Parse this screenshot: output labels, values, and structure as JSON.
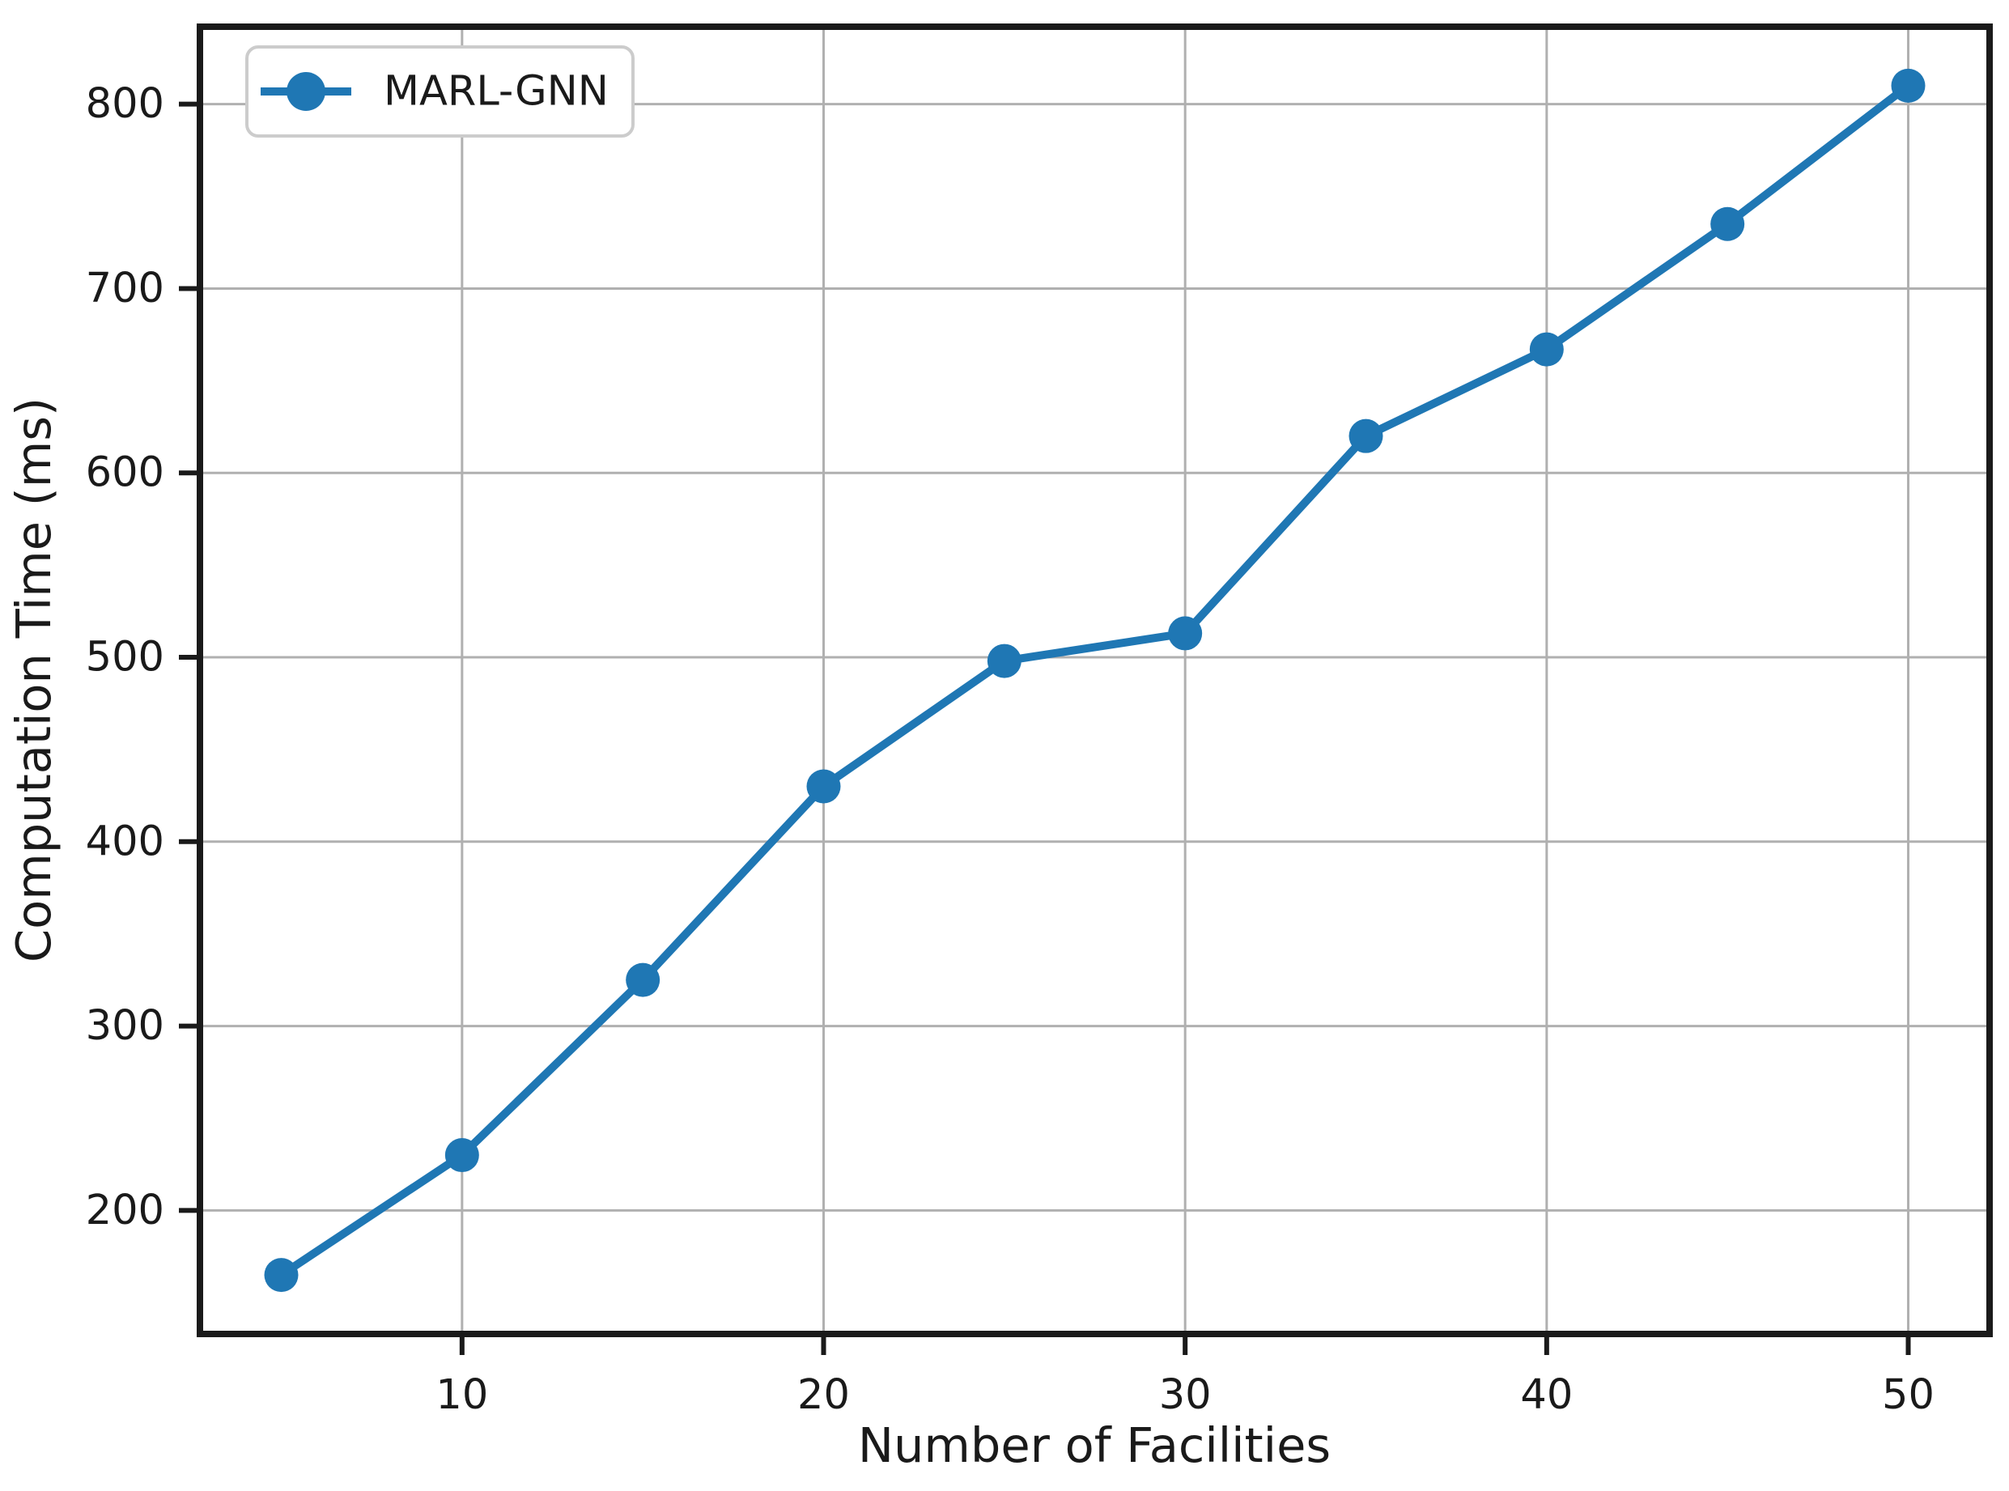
{
  "figure": {
    "background_color": "#ffffff",
    "plot_background_color": "#ffffff",
    "spine_color": "#1a1a1a",
    "grid_color": "#b0b0b0",
    "tick_label_color": "#1a1a1a",
    "legend": {
      "label": "MARL-GNN",
      "position": "upper left",
      "border_color": "#cccccc",
      "background_color": "#ffffff"
    }
  },
  "chart_data": {
    "type": "line",
    "title": "",
    "xlabel": "Number of Facilities",
    "ylabel": "Computation Time (ms)",
    "x": [
      5,
      10,
      15,
      20,
      25,
      30,
      35,
      40,
      45,
      50
    ],
    "series": [
      {
        "name": "MARL-GNN",
        "color": "#1f77b4",
        "marker": "circle",
        "values": [
          165,
          230,
          325,
          430,
          498,
          513,
          620,
          667,
          735,
          810
        ]
      }
    ],
    "xticks": [
      10,
      20,
      30,
      40,
      50
    ],
    "yticks": [
      200,
      300,
      400,
      500,
      600,
      700,
      800
    ],
    "xlim": [
      2.75,
      52.25
    ],
    "ylim": [
      133,
      842
    ],
    "grid": true,
    "legend_position": "upper left"
  }
}
